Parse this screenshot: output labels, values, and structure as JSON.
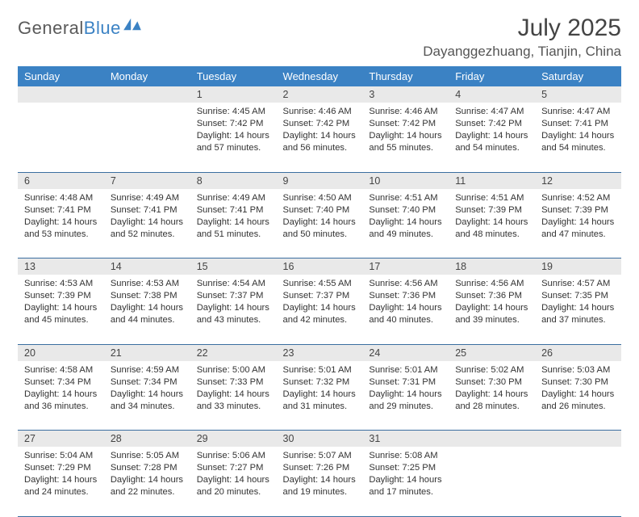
{
  "logo": {
    "text_part1": "General",
    "text_part2": "Blue",
    "icon_color": "#3b82c4"
  },
  "header": {
    "month_year": "July 2025",
    "location": "Dayanggezhuang, Tianjin, China"
  },
  "calendar": {
    "type": "table",
    "header_bg": "#3b82c4",
    "header_fg": "#ffffff",
    "daynum_bg": "#e9e9e9",
    "border_color": "#3b6ea0",
    "week_days": [
      "Sunday",
      "Monday",
      "Tuesday",
      "Wednesday",
      "Thursday",
      "Friday",
      "Saturday"
    ],
    "weeks": [
      {
        "nums": [
          "",
          "",
          "1",
          "2",
          "3",
          "4",
          "5"
        ],
        "cells": [
          null,
          null,
          {
            "sunrise": "Sunrise: 4:45 AM",
            "sunset": "Sunset: 7:42 PM",
            "day1": "Daylight: 14 hours",
            "day2": "and 57 minutes."
          },
          {
            "sunrise": "Sunrise: 4:46 AM",
            "sunset": "Sunset: 7:42 PM",
            "day1": "Daylight: 14 hours",
            "day2": "and 56 minutes."
          },
          {
            "sunrise": "Sunrise: 4:46 AM",
            "sunset": "Sunset: 7:42 PM",
            "day1": "Daylight: 14 hours",
            "day2": "and 55 minutes."
          },
          {
            "sunrise": "Sunrise: 4:47 AM",
            "sunset": "Sunset: 7:42 PM",
            "day1": "Daylight: 14 hours",
            "day2": "and 54 minutes."
          },
          {
            "sunrise": "Sunrise: 4:47 AM",
            "sunset": "Sunset: 7:41 PM",
            "day1": "Daylight: 14 hours",
            "day2": "and 54 minutes."
          }
        ]
      },
      {
        "nums": [
          "6",
          "7",
          "8",
          "9",
          "10",
          "11",
          "12"
        ],
        "cells": [
          {
            "sunrise": "Sunrise: 4:48 AM",
            "sunset": "Sunset: 7:41 PM",
            "day1": "Daylight: 14 hours",
            "day2": "and 53 minutes."
          },
          {
            "sunrise": "Sunrise: 4:49 AM",
            "sunset": "Sunset: 7:41 PM",
            "day1": "Daylight: 14 hours",
            "day2": "and 52 minutes."
          },
          {
            "sunrise": "Sunrise: 4:49 AM",
            "sunset": "Sunset: 7:41 PM",
            "day1": "Daylight: 14 hours",
            "day2": "and 51 minutes."
          },
          {
            "sunrise": "Sunrise: 4:50 AM",
            "sunset": "Sunset: 7:40 PM",
            "day1": "Daylight: 14 hours",
            "day2": "and 50 minutes."
          },
          {
            "sunrise": "Sunrise: 4:51 AM",
            "sunset": "Sunset: 7:40 PM",
            "day1": "Daylight: 14 hours",
            "day2": "and 49 minutes."
          },
          {
            "sunrise": "Sunrise: 4:51 AM",
            "sunset": "Sunset: 7:39 PM",
            "day1": "Daylight: 14 hours",
            "day2": "and 48 minutes."
          },
          {
            "sunrise": "Sunrise: 4:52 AM",
            "sunset": "Sunset: 7:39 PM",
            "day1": "Daylight: 14 hours",
            "day2": "and 47 minutes."
          }
        ]
      },
      {
        "nums": [
          "13",
          "14",
          "15",
          "16",
          "17",
          "18",
          "19"
        ],
        "cells": [
          {
            "sunrise": "Sunrise: 4:53 AM",
            "sunset": "Sunset: 7:39 PM",
            "day1": "Daylight: 14 hours",
            "day2": "and 45 minutes."
          },
          {
            "sunrise": "Sunrise: 4:53 AM",
            "sunset": "Sunset: 7:38 PM",
            "day1": "Daylight: 14 hours",
            "day2": "and 44 minutes."
          },
          {
            "sunrise": "Sunrise: 4:54 AM",
            "sunset": "Sunset: 7:37 PM",
            "day1": "Daylight: 14 hours",
            "day2": "and 43 minutes."
          },
          {
            "sunrise": "Sunrise: 4:55 AM",
            "sunset": "Sunset: 7:37 PM",
            "day1": "Daylight: 14 hours",
            "day2": "and 42 minutes."
          },
          {
            "sunrise": "Sunrise: 4:56 AM",
            "sunset": "Sunset: 7:36 PM",
            "day1": "Daylight: 14 hours",
            "day2": "and 40 minutes."
          },
          {
            "sunrise": "Sunrise: 4:56 AM",
            "sunset": "Sunset: 7:36 PM",
            "day1": "Daylight: 14 hours",
            "day2": "and 39 minutes."
          },
          {
            "sunrise": "Sunrise: 4:57 AM",
            "sunset": "Sunset: 7:35 PM",
            "day1": "Daylight: 14 hours",
            "day2": "and 37 minutes."
          }
        ]
      },
      {
        "nums": [
          "20",
          "21",
          "22",
          "23",
          "24",
          "25",
          "26"
        ],
        "cells": [
          {
            "sunrise": "Sunrise: 4:58 AM",
            "sunset": "Sunset: 7:34 PM",
            "day1": "Daylight: 14 hours",
            "day2": "and 36 minutes."
          },
          {
            "sunrise": "Sunrise: 4:59 AM",
            "sunset": "Sunset: 7:34 PM",
            "day1": "Daylight: 14 hours",
            "day2": "and 34 minutes."
          },
          {
            "sunrise": "Sunrise: 5:00 AM",
            "sunset": "Sunset: 7:33 PM",
            "day1": "Daylight: 14 hours",
            "day2": "and 33 minutes."
          },
          {
            "sunrise": "Sunrise: 5:01 AM",
            "sunset": "Sunset: 7:32 PM",
            "day1": "Daylight: 14 hours",
            "day2": "and 31 minutes."
          },
          {
            "sunrise": "Sunrise: 5:01 AM",
            "sunset": "Sunset: 7:31 PM",
            "day1": "Daylight: 14 hours",
            "day2": "and 29 minutes."
          },
          {
            "sunrise": "Sunrise: 5:02 AM",
            "sunset": "Sunset: 7:30 PM",
            "day1": "Daylight: 14 hours",
            "day2": "and 28 minutes."
          },
          {
            "sunrise": "Sunrise: 5:03 AM",
            "sunset": "Sunset: 7:30 PM",
            "day1": "Daylight: 14 hours",
            "day2": "and 26 minutes."
          }
        ]
      },
      {
        "nums": [
          "27",
          "28",
          "29",
          "30",
          "31",
          "",
          ""
        ],
        "cells": [
          {
            "sunrise": "Sunrise: 5:04 AM",
            "sunset": "Sunset: 7:29 PM",
            "day1": "Daylight: 14 hours",
            "day2": "and 24 minutes."
          },
          {
            "sunrise": "Sunrise: 5:05 AM",
            "sunset": "Sunset: 7:28 PM",
            "day1": "Daylight: 14 hours",
            "day2": "and 22 minutes."
          },
          {
            "sunrise": "Sunrise: 5:06 AM",
            "sunset": "Sunset: 7:27 PM",
            "day1": "Daylight: 14 hours",
            "day2": "and 20 minutes."
          },
          {
            "sunrise": "Sunrise: 5:07 AM",
            "sunset": "Sunset: 7:26 PM",
            "day1": "Daylight: 14 hours",
            "day2": "and 19 minutes."
          },
          {
            "sunrise": "Sunrise: 5:08 AM",
            "sunset": "Sunset: 7:25 PM",
            "day1": "Daylight: 14 hours",
            "day2": "and 17 minutes."
          },
          null,
          null
        ]
      }
    ]
  }
}
